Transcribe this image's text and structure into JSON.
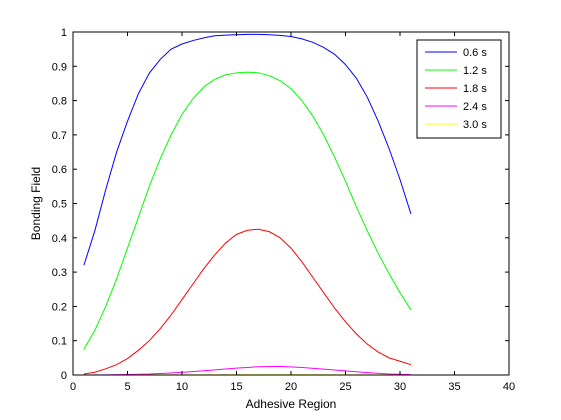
{
  "chart_data": {
    "type": "line",
    "xlabel": "Adhesive Region",
    "ylabel": "Bonding Field",
    "xlim": [
      0,
      40
    ],
    "ylim": [
      0,
      1
    ],
    "xticks": [
      "0",
      "5",
      "10",
      "15",
      "20",
      "25",
      "30",
      "35",
      "40"
    ],
    "yticks": [
      "0",
      "0.1",
      "0.2",
      "0.3",
      "0.4",
      "0.5",
      "0.6",
      "0.7",
      "0.8",
      "0.9",
      "1"
    ],
    "grid": false,
    "legend_position": "top-right",
    "series": [
      {
        "name": "0.6 s",
        "color": "#0000ff",
        "x": [
          1,
          2,
          3,
          4,
          5,
          6,
          7,
          8,
          9,
          10,
          11,
          12,
          13,
          14,
          15,
          16,
          17,
          18,
          19,
          20,
          21,
          22,
          23,
          24,
          25,
          26,
          27,
          28,
          29,
          30,
          31
        ],
        "y": [
          0.32,
          0.42,
          0.54,
          0.65,
          0.74,
          0.82,
          0.88,
          0.92,
          0.95,
          0.965,
          0.975,
          0.983,
          0.989,
          0.991,
          0.992,
          0.993,
          0.993,
          0.992,
          0.99,
          0.987,
          0.98,
          0.97,
          0.955,
          0.935,
          0.905,
          0.865,
          0.81,
          0.74,
          0.66,
          0.57,
          0.47
        ]
      },
      {
        "name": "1.2 s",
        "color": "#00ff00",
        "x": [
          1,
          2,
          3,
          4,
          5,
          6,
          7,
          8,
          9,
          10,
          11,
          12,
          13,
          14,
          15,
          16,
          17,
          18,
          19,
          20,
          21,
          22,
          23,
          24,
          25,
          26,
          27,
          28,
          29,
          30,
          31
        ],
        "y": [
          0.075,
          0.13,
          0.2,
          0.28,
          0.37,
          0.46,
          0.55,
          0.63,
          0.7,
          0.76,
          0.805,
          0.84,
          0.862,
          0.875,
          0.881,
          0.883,
          0.881,
          0.873,
          0.858,
          0.835,
          0.8,
          0.755,
          0.7,
          0.635,
          0.565,
          0.49,
          0.42,
          0.355,
          0.295,
          0.24,
          0.19
        ]
      },
      {
        "name": "1.8 s",
        "color": "#ff0000",
        "x": [
          1,
          2,
          3,
          4,
          5,
          6,
          7,
          8,
          9,
          10,
          11,
          12,
          13,
          14,
          15,
          16,
          17,
          18,
          19,
          20,
          21,
          22,
          23,
          24,
          25,
          26,
          27,
          28,
          29,
          30,
          31
        ],
        "y": [
          0.003,
          0.008,
          0.018,
          0.03,
          0.048,
          0.072,
          0.1,
          0.135,
          0.175,
          0.22,
          0.265,
          0.31,
          0.35,
          0.385,
          0.41,
          0.422,
          0.425,
          0.418,
          0.4,
          0.37,
          0.33,
          0.285,
          0.24,
          0.195,
          0.155,
          0.12,
          0.09,
          0.067,
          0.05,
          0.04,
          0.03
        ]
      },
      {
        "name": "2.4 s",
        "color": "#ff00ff",
        "x": [
          1,
          3,
          5,
          7,
          9,
          11,
          13,
          15,
          17,
          19,
          21,
          23,
          25,
          27,
          29,
          31
        ],
        "y": [
          0.0,
          0.0005,
          0.0015,
          0.003,
          0.006,
          0.01,
          0.015,
          0.02,
          0.024,
          0.025,
          0.022,
          0.017,
          0.012,
          0.007,
          0.003,
          0.001
        ]
      },
      {
        "name": "3.0 s",
        "color": "#ffff00",
        "x": [
          1,
          6,
          11,
          16,
          21,
          26,
          31
        ],
        "y": [
          0.0,
          0.0002,
          0.0005,
          0.0008,
          0.0006,
          0.0003,
          0.0001
        ]
      }
    ]
  }
}
